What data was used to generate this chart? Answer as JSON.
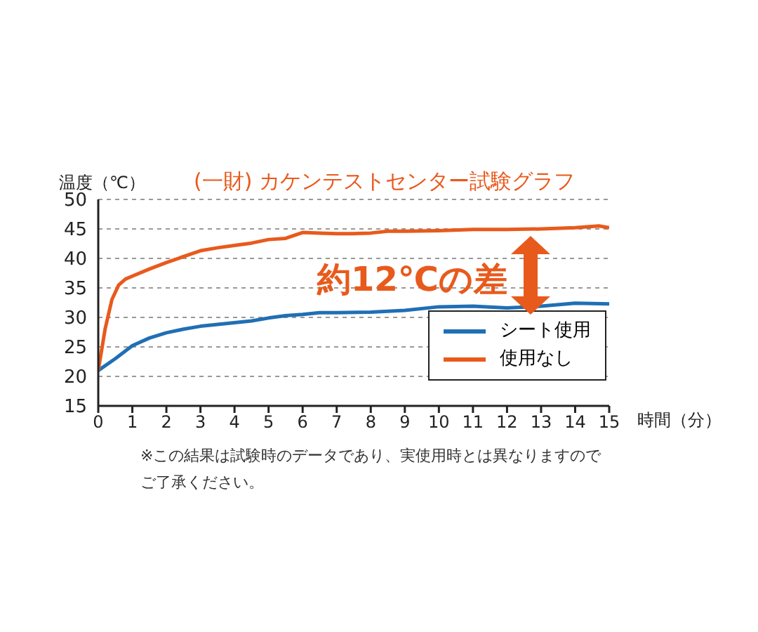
{
  "chart_data": {
    "type": "line",
    "title": "(一財) カケンテストセンター試験グラフ",
    "xlabel": "時間（分）",
    "ylabel": "温度（℃）",
    "xlim": [
      0,
      15
    ],
    "xticks": [
      0,
      1,
      2,
      3,
      4,
      5,
      6,
      7,
      8,
      9,
      10,
      11,
      12,
      13,
      14,
      15
    ],
    "ylim": [
      15,
      50
    ],
    "yticks": [
      15,
      20,
      25,
      30,
      35,
      40,
      45,
      50
    ],
    "grid": "y",
    "legend": "bottom right",
    "marker": "none",
    "line_style": "solid",
    "annotations": [
      "約12℃の差",
      "※この結果は試験時のデータであり、実使用時とは異なりますのでご了承ください。"
    ],
    "series": [
      {
        "name": "シート使用",
        "color": "#1f6fb5",
        "x": [
          0,
          0.5,
          1,
          1.5,
          2,
          2.5,
          3,
          3.5,
          4,
          4.5,
          5,
          5.5,
          6,
          6.5,
          7,
          8,
          9,
          10,
          11,
          12,
          13,
          14,
          15
        ],
        "values": [
          21,
          23,
          25.2,
          26.5,
          27.4,
          28,
          28.5,
          28.8,
          29.1,
          29.4,
          29.9,
          30.3,
          30.5,
          30.8,
          30.8,
          30.9,
          31.2,
          31.8,
          31.9,
          31.6,
          31.9,
          32.4,
          32.3
        ]
      },
      {
        "name": "使用なし",
        "color": "#e85a1c",
        "x": [
          0,
          0.2,
          0.4,
          0.6,
          0.8,
          1,
          1.5,
          2,
          2.5,
          3,
          3.5,
          4,
          4.5,
          5,
          5.5,
          6,
          6.5,
          7,
          7.5,
          8,
          8.5,
          9,
          10,
          11,
          12,
          13,
          14,
          14.7,
          15
        ],
        "values": [
          21,
          28,
          33,
          35.5,
          36.5,
          37,
          38.2,
          39.3,
          40.3,
          41.3,
          41.8,
          42.2,
          42.6,
          43.2,
          43.4,
          44.4,
          44.3,
          44.2,
          44.2,
          44.3,
          44.6,
          44.6,
          44.7,
          44.9,
          44.9,
          45,
          45.2,
          45.5,
          45.2
        ]
      }
    ]
  }
}
